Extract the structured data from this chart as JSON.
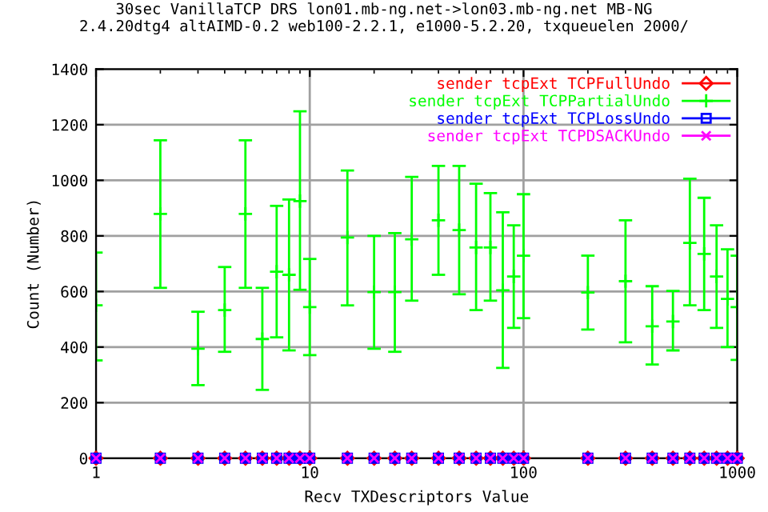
{
  "chart_data": {
    "type": "scatter",
    "title": "30sec VanillaTCP DRS lon01.mb-ng.net->lon03.mb-ng.net MB-NG\n2.4.20dtg4 altAIMD-0.2 web100-2.2.1, e1000-5.2.20, txqueuelen 2000/",
    "xlabel": "Recv TXDescriptors Value",
    "ylabel": "Count (Number)",
    "x": [
      1,
      2,
      3,
      4,
      5,
      6,
      7,
      8,
      9,
      10,
      15,
      20,
      25,
      30,
      40,
      50,
      60,
      70,
      80,
      90,
      100,
      200,
      300,
      400,
      500,
      600,
      700,
      800,
      900,
      1000
    ],
    "series": [
      {
        "name": "sender tcpExt TCPFullUndo",
        "color": "#ff0000",
        "marker": "diamond",
        "values": [
          0,
          0,
          0,
          0,
          0,
          0,
          0,
          0,
          0,
          0,
          0,
          0,
          0,
          0,
          0,
          0,
          0,
          0,
          0,
          0,
          0,
          0,
          0,
          0,
          0,
          0,
          0,
          0,
          0,
          0
        ]
      },
      {
        "name": "sender tcpExt TCPPartialUndo",
        "color": "#00ff00",
        "marker": "plus",
        "values": [
          550,
          879,
          394,
          533,
          879,
          429,
          671,
          660,
          925,
          544,
          794,
          598,
          598,
          788,
          856,
          821,
          758,
          758,
          604,
          654,
          729,
          596,
          637,
          475,
          492,
          775,
          735,
          654,
          573,
          544
        ],
        "errors": [
          [
            352,
            740
          ],
          [
            613,
            1144
          ],
          [
            263,
            527
          ],
          [
            383,
            688
          ],
          [
            613,
            1144
          ],
          [
            246,
            613
          ],
          [
            435,
            908
          ],
          [
            388,
            931
          ],
          [
            606,
            1248
          ],
          [
            371,
            717
          ],
          [
            550,
            1035
          ],
          [
            394,
            800
          ],
          [
            383,
            810
          ],
          [
            567,
            1012
          ],
          [
            660,
            1052
          ],
          [
            590,
            1052
          ],
          [
            533,
            988
          ],
          [
            567,
            954
          ],
          [
            325,
            885
          ],
          [
            469,
            838
          ],
          [
            504,
            950
          ],
          [
            463,
            729
          ],
          [
            417,
            856
          ],
          [
            337,
            619
          ],
          [
            388,
            602
          ],
          [
            550,
            1006
          ],
          [
            533,
            937
          ],
          [
            469,
            838
          ],
          [
            400,
            752
          ],
          [
            354,
            729
          ]
        ]
      },
      {
        "name": "sender tcpExt TCPLossUndo",
        "color": "#0000ff",
        "marker": "square",
        "values": [
          0,
          0,
          0,
          0,
          0,
          0,
          0,
          0,
          0,
          0,
          0,
          0,
          0,
          0,
          0,
          0,
          0,
          0,
          0,
          0,
          0,
          0,
          0,
          0,
          0,
          0,
          0,
          0,
          0,
          0
        ]
      },
      {
        "name": "sender tcpExt TCPDSACKUndo",
        "color": "#ff00ff",
        "marker": "cross",
        "values": [
          0,
          0,
          0,
          0,
          0,
          0,
          0,
          0,
          0,
          0,
          0,
          0,
          0,
          0,
          0,
          0,
          0,
          0,
          0,
          0,
          0,
          0,
          0,
          0,
          0,
          0,
          0,
          0,
          0,
          0
        ]
      }
    ],
    "log": "x",
    "xlim": [
      1,
      1000
    ],
    "xticks": [
      1,
      10,
      100,
      1000
    ],
    "ylim": [
      0,
      1400
    ],
    "yticks": [
      0,
      200,
      400,
      600,
      800,
      1000,
      1200,
      1400
    ],
    "grid": true,
    "legend": "top right"
  }
}
